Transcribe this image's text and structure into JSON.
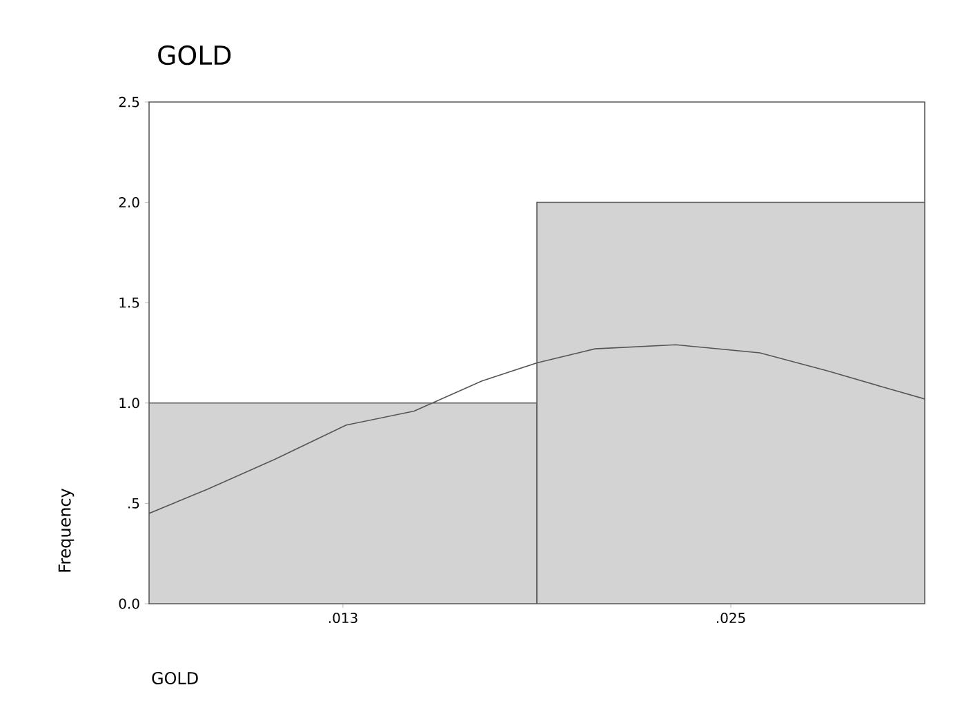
{
  "chart_data": {
    "type": "histogram",
    "title": "GOLD",
    "xlabel": "GOLD",
    "ylabel": "Frequency",
    "bins": [
      0.007,
      0.019,
      0.031
    ],
    "values": [
      1,
      2
    ],
    "color": "#d3d3d3",
    "series": [
      {
        "type": "line",
        "color": "#555555",
        "x": [
          0.007,
          0.0088,
          0.0109,
          0.0131,
          0.0152,
          0.0173,
          0.019,
          0.0208,
          0.0233,
          0.0259,
          0.028,
          0.0297,
          0.031
        ],
        "values": [
          0.45,
          0.57,
          0.72,
          0.89,
          0.96,
          1.11,
          1.2,
          1.27,
          1.29,
          1.25,
          1.16,
          1.08,
          1.02
        ]
      }
    ],
    "xlim": [
      0.007,
      0.031
    ],
    "ylim": [
      0,
      2.5
    ],
    "xticks": [
      {
        "value": 0.013,
        "label": ".013"
      },
      {
        "value": 0.025,
        "label": ".025"
      }
    ],
    "yticks": [
      {
        "value": 0,
        "label": "0.0"
      },
      {
        "value": 0.5,
        "label": ".5"
      },
      {
        "value": 1,
        "label": "1.0"
      },
      {
        "value": 1.5,
        "label": "1.5"
      },
      {
        "value": 2,
        "label": "2.0"
      },
      {
        "value": 2.5,
        "label": "2.5"
      }
    ],
    "grid": false
  }
}
